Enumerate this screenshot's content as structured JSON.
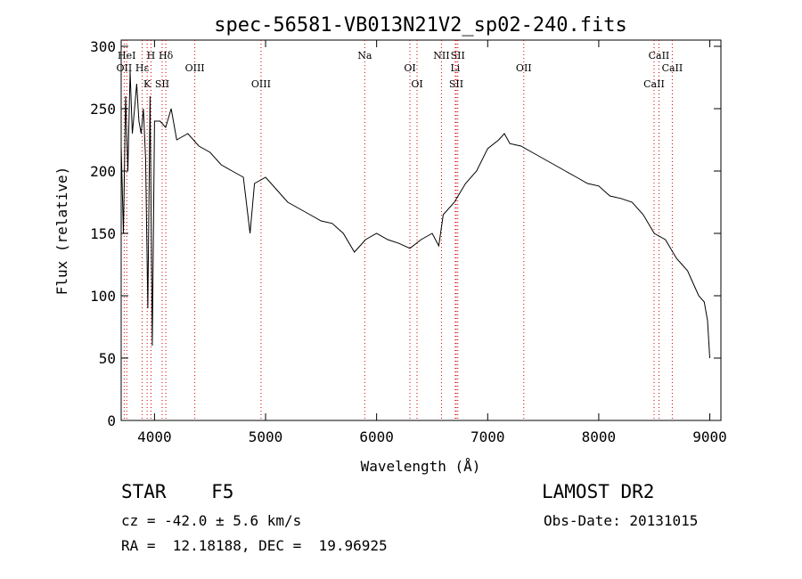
{
  "chart_data": {
    "type": "line",
    "title": "spec-56581-VB013N21V2_sp02-240.fits",
    "xlabel": "Wavelength (Å)",
    "ylabel": "Flux (relative)",
    "xlim": [
      3700,
      9100
    ],
    "ylim": [
      0,
      305
    ],
    "xticks": [
      4000,
      5000,
      6000,
      7000,
      8000,
      9000
    ],
    "yticks": [
      0,
      50,
      100,
      150,
      200,
      250,
      300
    ],
    "grid": false,
    "series": [
      {
        "x": [
          3700,
          3720,
          3740,
          3760,
          3780,
          3800,
          3820,
          3840,
          3860,
          3880,
          3900,
          3920,
          3940,
          3960,
          3980,
          4000,
          4050,
          4100,
          4150,
          4200,
          4300,
          4400,
          4500,
          4600,
          4700,
          4800,
          4860,
          4900,
          5000,
          5100,
          5200,
          5300,
          5400,
          5500,
          5600,
          5700,
          5800,
          5850,
          5900,
          6000,
          6100,
          6200,
          6300,
          6400,
          6500,
          6560,
          6600,
          6700,
          6800,
          6900,
          7000,
          7100,
          7150,
          7200,
          7300,
          7400,
          7500,
          7600,
          7700,
          7800,
          7900,
          8000,
          8100,
          8200,
          8300,
          8400,
          8500,
          8600,
          8700,
          8750,
          8800,
          8850,
          8900,
          8950,
          8980,
          9000
        ],
        "y": [
          220,
          150,
          260,
          200,
          280,
          230,
          250,
          270,
          240,
          230,
          250,
          210,
          90,
          260,
          60,
          240,
          240,
          235,
          250,
          225,
          230,
          220,
          215,
          205,
          200,
          195,
          150,
          190,
          195,
          185,
          175,
          170,
          165,
          160,
          158,
          150,
          135,
          140,
          145,
          150,
          145,
          142,
          138,
          145,
          150,
          140,
          165,
          175,
          190,
          200,
          218,
          225,
          230,
          222,
          220,
          215,
          210,
          205,
          200,
          195,
          190,
          188,
          180,
          178,
          175,
          165,
          150,
          145,
          130,
          125,
          120,
          110,
          100,
          95,
          80,
          50
        ]
      }
    ],
    "annotations": [
      {
        "label": "HeI",
        "x": 3750
      },
      {
        "label": "OII",
        "x": 3727
      },
      {
        "label": "K",
        "x": 3934
      },
      {
        "label": "H",
        "x": 3968
      },
      {
        "label": "Hε",
        "x": 3889
      },
      {
        "label": "SII",
        "x": 4069
      },
      {
        "label": "Hδ",
        "x": 4102
      },
      {
        "label": "OIII",
        "x": 4363
      },
      {
        "label": "OIII",
        "x": 4959
      },
      {
        "label": "Na",
        "x": 5893
      },
      {
        "label": "OI",
        "x": 6300
      },
      {
        "label": "OI",
        "x": 6364
      },
      {
        "label": "NII",
        "x": 6584
      },
      {
        "label": "Li",
        "x": 6708
      },
      {
        "label": "SII",
        "x": 6717
      },
      {
        "label": "SII",
        "x": 6731
      },
      {
        "label": "OII",
        "x": 7325
      },
      {
        "label": "CaII",
        "x": 8498
      },
      {
        "label": "CaII",
        "x": 8542
      },
      {
        "label": "CaII",
        "x": 8662
      }
    ]
  },
  "info": {
    "object_class": "STAR    F5",
    "survey": "LAMOST DR2",
    "cz": "cz = -42.0 ± 5.6 km/s",
    "obs_date": "Obs-Date: 20131015",
    "radec": "RA =  12.18188, DEC =  19.96925"
  }
}
